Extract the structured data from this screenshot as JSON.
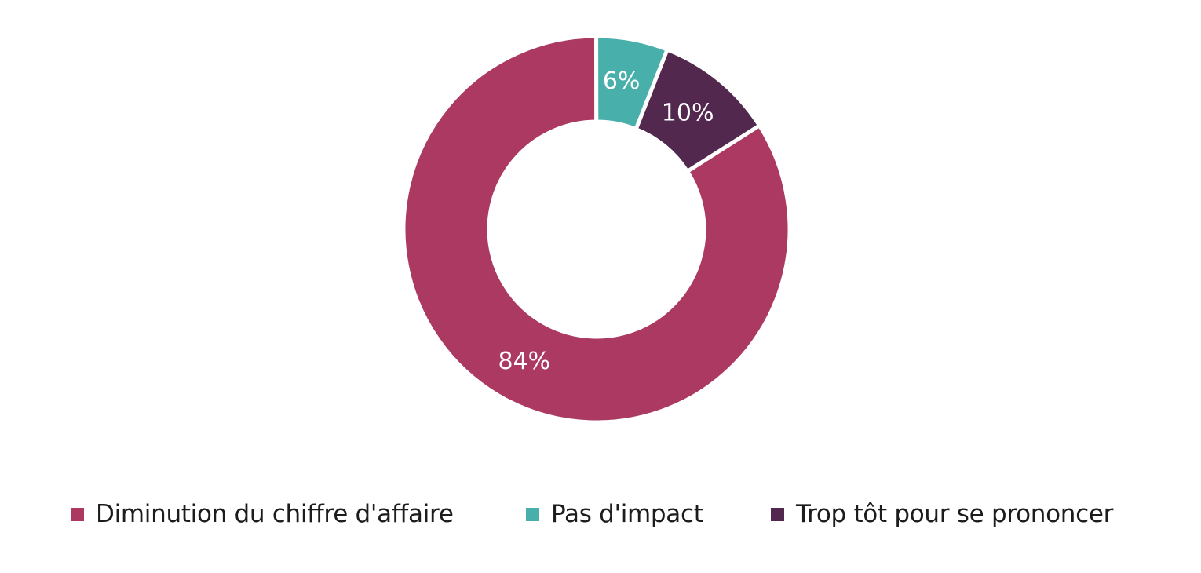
{
  "chart_data": {
    "type": "pie",
    "donut": true,
    "title": "",
    "legend_position": "bottom",
    "categories": [
      "Diminution du chiffre d'affaire",
      "Pas d'impact",
      "Trop tôt pour se prononcer"
    ],
    "values": [
      84,
      6,
      10
    ],
    "data_labels": [
      "84%",
      "6%",
      "10%"
    ],
    "colors": [
      "#ab3962",
      "#48afab",
      "#53284f"
    ]
  },
  "legend": {
    "items": [
      {
        "label": "Diminution du chiffre d'affaire",
        "color": "#ab3962"
      },
      {
        "label": "Pas d'impact",
        "color": "#48afab"
      },
      {
        "label": "Trop tôt pour se prononcer",
        "color": "#53284f"
      }
    ]
  }
}
